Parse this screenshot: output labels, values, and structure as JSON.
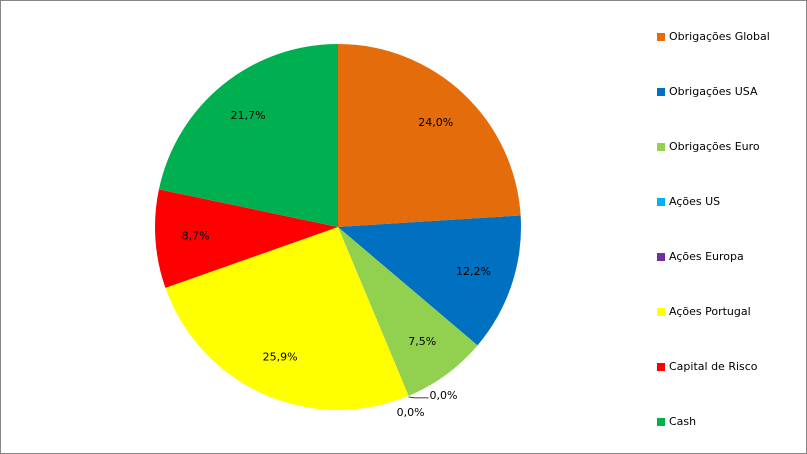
{
  "chart_data": {
    "type": "pie",
    "categories": [
      "Obrigações Global",
      "Obrigações USA",
      "Obrigações Euro",
      "Ações US",
      "Ações Europa",
      "Ações Portugal",
      "Capital de Risco",
      "Cash"
    ],
    "values": [
      24.0,
      12.2,
      7.5,
      0.0,
      0.0,
      25.9,
      8.7,
      21.7
    ],
    "value_labels": [
      "24,0%",
      "12,2%",
      "7,5%",
      "0,0%",
      "0,0%",
      "25,9%",
      "8,7%",
      "21,7%"
    ],
    "colors": [
      "#E46C0A",
      "#0070C0",
      "#92D050",
      "#00B0F0",
      "#7030A0",
      "#FFFF00",
      "#FF0000",
      "#00B050"
    ],
    "legend": "right"
  }
}
